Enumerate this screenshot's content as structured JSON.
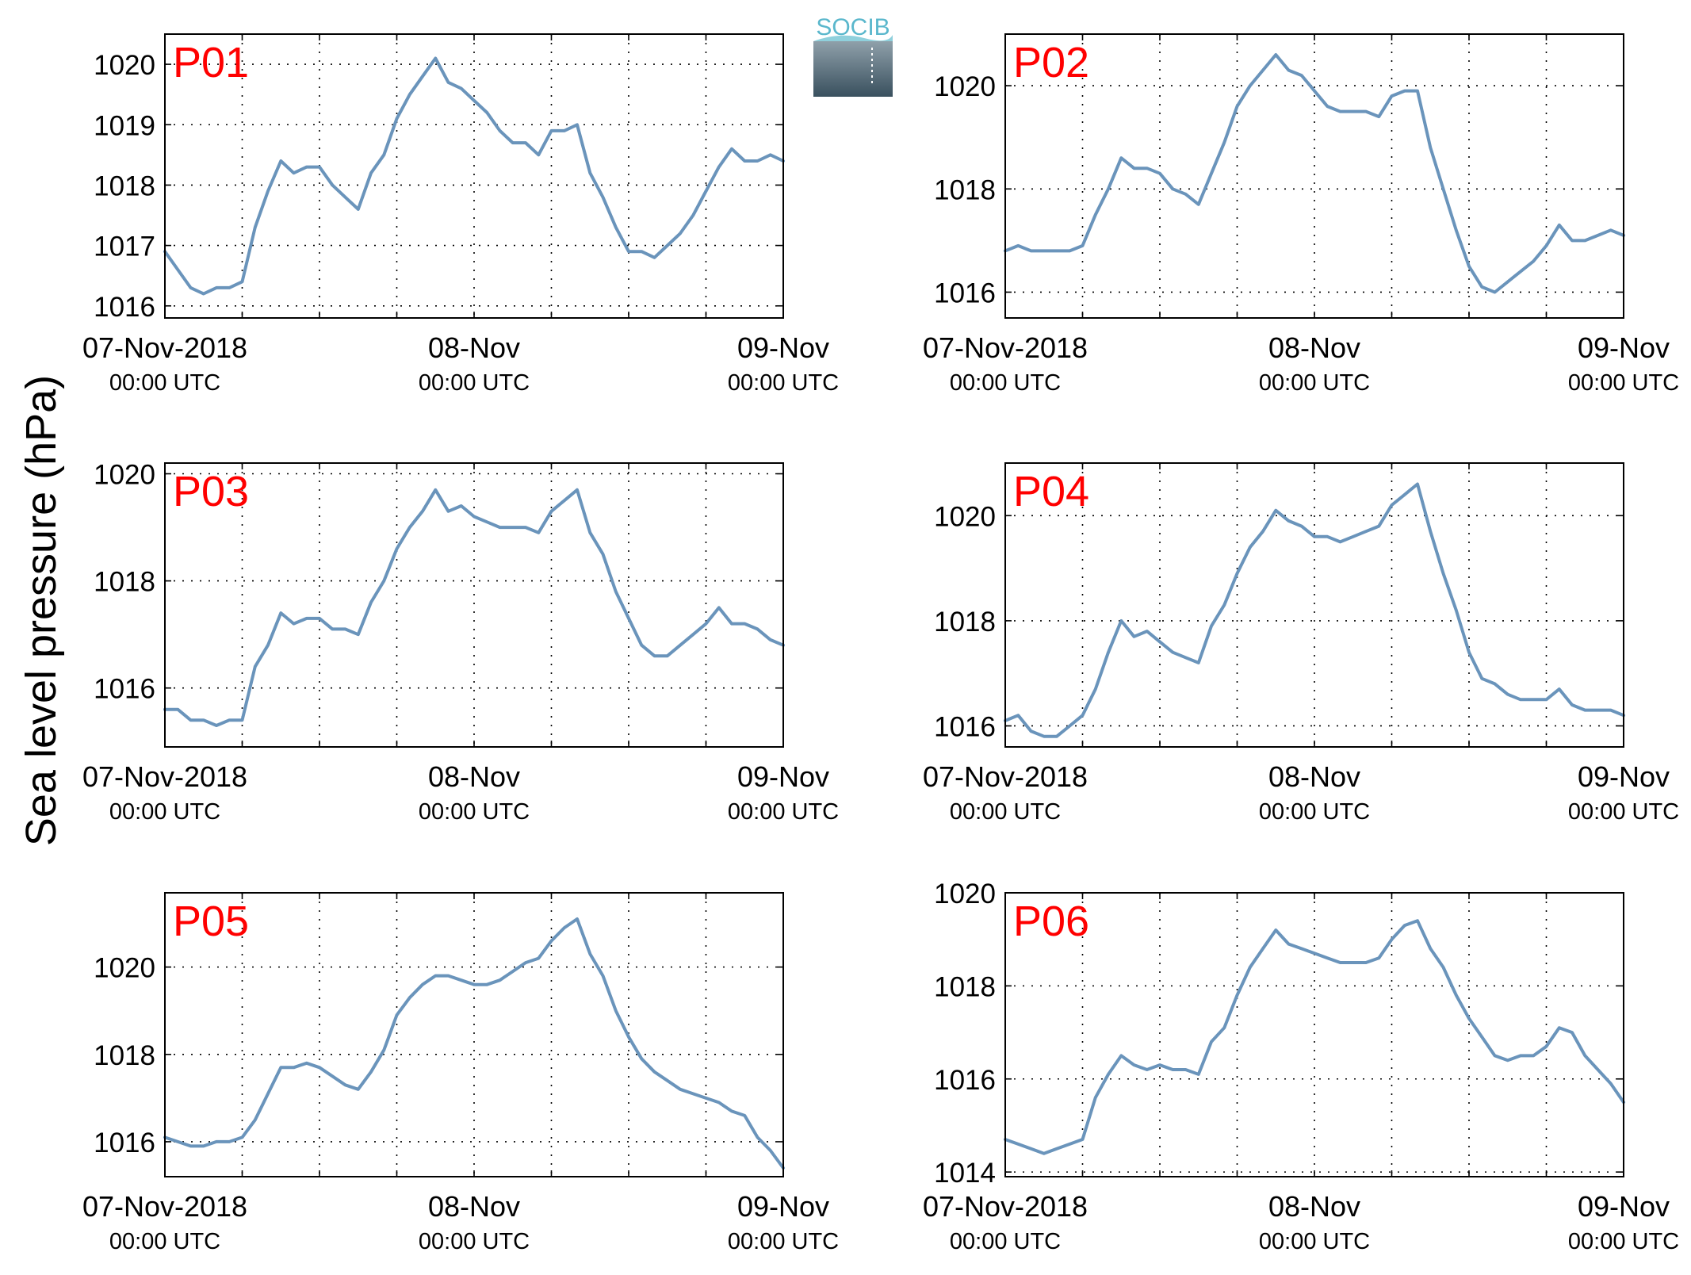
{
  "figure": {
    "ylabel": "Sea level pressure (hPa)",
    "logo_text": "SOCIB"
  },
  "colors": {
    "line": "#6a94bb",
    "panel_label": "#ff0000",
    "axis": "#000000",
    "grid": "#000000"
  },
  "chart_data": [
    {
      "type": "line",
      "panel": "P01",
      "x_ticks": [
        {
          "top": "07-Nov-2018",
          "bottom": "00:00 UTC"
        },
        {
          "top": "08-Nov",
          "bottom": "00:00 UTC"
        },
        {
          "top": "09-Nov",
          "bottom": "00:00 UTC"
        }
      ],
      "xlim_hours": [
        0,
        48
      ],
      "ylim": [
        1015.8,
        1020.5
      ],
      "yticks": [
        1016,
        1017,
        1018,
        1019,
        1020
      ],
      "grid": true,
      "x": [
        0,
        1,
        2,
        3,
        4,
        5,
        6,
        7,
        8,
        9,
        10,
        11,
        12,
        13,
        14,
        15,
        16,
        17,
        18,
        19,
        20,
        21,
        22,
        23,
        24,
        25,
        26,
        27,
        28,
        29,
        30,
        31,
        32,
        33,
        34,
        35,
        36,
        37,
        38,
        39,
        40,
        41,
        42,
        43,
        44,
        45,
        46,
        47,
        48
      ],
      "values": [
        1016.9,
        1016.6,
        1016.3,
        1016.2,
        1016.3,
        1016.3,
        1016.4,
        1017.3,
        1017.9,
        1018.4,
        1018.2,
        1018.3,
        1018.3,
        1018.0,
        1017.8,
        1017.6,
        1018.2,
        1018.5,
        1019.1,
        1019.5,
        1019.8,
        1020.1,
        1019.7,
        1019.6,
        1019.4,
        1019.2,
        1018.9,
        1018.7,
        1018.7,
        1018.5,
        1018.9,
        1018.9,
        1019.0,
        1018.2,
        1017.8,
        1017.3,
        1016.9,
        1016.9,
        1016.8,
        1017.0,
        1017.2,
        1017.5,
        1017.9,
        1018.3,
        1018.6,
        1018.4,
        1018.4,
        1018.5,
        1018.4
      ]
    },
    {
      "type": "line",
      "panel": "P02",
      "x_ticks": [
        {
          "top": "07-Nov-2018",
          "bottom": "00:00 UTC"
        },
        {
          "top": "08-Nov",
          "bottom": "00:00 UTC"
        },
        {
          "top": "09-Nov",
          "bottom": "00:00 UTC"
        }
      ],
      "xlim_hours": [
        0,
        48
      ],
      "ylim": [
        1015.5,
        1021.0
      ],
      "yticks": [
        1016,
        1018,
        1020
      ],
      "grid": true,
      "x": [
        0,
        1,
        2,
        3,
        4,
        5,
        6,
        7,
        8,
        9,
        10,
        11,
        12,
        13,
        14,
        15,
        16,
        17,
        18,
        19,
        20,
        21,
        22,
        23,
        24,
        25,
        26,
        27,
        28,
        29,
        30,
        31,
        32,
        33,
        34,
        35,
        36,
        37,
        38,
        39,
        40,
        41,
        42,
        43,
        44,
        45,
        46,
        47,
        48
      ],
      "values": [
        1016.8,
        1016.9,
        1016.8,
        1016.8,
        1016.8,
        1016.8,
        1016.9,
        1017.5,
        1018.0,
        1018.6,
        1018.4,
        1018.4,
        1018.3,
        1018.0,
        1017.9,
        1017.7,
        1018.3,
        1018.9,
        1019.6,
        1020.0,
        1020.3,
        1020.6,
        1020.3,
        1020.2,
        1019.9,
        1019.6,
        1019.5,
        1019.5,
        1019.5,
        1019.4,
        1019.8,
        1019.9,
        1019.9,
        1018.8,
        1018.0,
        1017.2,
        1016.5,
        1016.1,
        1016.0,
        1016.2,
        1016.4,
        1016.6,
        1016.9,
        1017.3,
        1017.0,
        1017.0,
        1017.1,
        1017.2,
        1017.1
      ]
    },
    {
      "type": "line",
      "panel": "P03",
      "x_ticks": [
        {
          "top": "07-Nov-2018",
          "bottom": "00:00 UTC"
        },
        {
          "top": "08-Nov",
          "bottom": "00:00 UTC"
        },
        {
          "top": "09-Nov",
          "bottom": "00:00 UTC"
        }
      ],
      "xlim_hours": [
        0,
        48
      ],
      "ylim": [
        1014.9,
        1020.2
      ],
      "yticks": [
        1016,
        1018,
        1020
      ],
      "grid": true,
      "x": [
        0,
        1,
        2,
        3,
        4,
        5,
        6,
        7,
        8,
        9,
        10,
        11,
        12,
        13,
        14,
        15,
        16,
        17,
        18,
        19,
        20,
        21,
        22,
        23,
        24,
        25,
        26,
        27,
        28,
        29,
        30,
        31,
        32,
        33,
        34,
        35,
        36,
        37,
        38,
        39,
        40,
        41,
        42,
        43,
        44,
        45,
        46,
        47,
        48
      ],
      "values": [
        1015.6,
        1015.6,
        1015.4,
        1015.4,
        1015.3,
        1015.4,
        1015.4,
        1016.4,
        1016.8,
        1017.4,
        1017.2,
        1017.3,
        1017.3,
        1017.1,
        1017.1,
        1017.0,
        1017.6,
        1018.0,
        1018.6,
        1019.0,
        1019.3,
        1019.7,
        1019.3,
        1019.4,
        1019.2,
        1019.1,
        1019.0,
        1019.0,
        1019.0,
        1018.9,
        1019.3,
        1019.5,
        1019.7,
        1018.9,
        1018.5,
        1017.8,
        1017.3,
        1016.8,
        1016.6,
        1016.6,
        1016.8,
        1017.0,
        1017.2,
        1017.5,
        1017.2,
        1017.2,
        1017.1,
        1016.9,
        1016.8
      ]
    },
    {
      "type": "line",
      "panel": "P04",
      "x_ticks": [
        {
          "top": "07-Nov-2018",
          "bottom": "00:00 UTC"
        },
        {
          "top": "08-Nov",
          "bottom": "00:00 UTC"
        },
        {
          "top": "09-Nov",
          "bottom": "00:00 UTC"
        }
      ],
      "xlim_hours": [
        0,
        48
      ],
      "ylim": [
        1015.6,
        1021.0
      ],
      "yticks": [
        1016,
        1018,
        1020
      ],
      "grid": true,
      "x": [
        0,
        1,
        2,
        3,
        4,
        5,
        6,
        7,
        8,
        9,
        10,
        11,
        12,
        13,
        14,
        15,
        16,
        17,
        18,
        19,
        20,
        21,
        22,
        23,
        24,
        25,
        26,
        27,
        28,
        29,
        30,
        31,
        32,
        33,
        34,
        35,
        36,
        37,
        38,
        39,
        40,
        41,
        42,
        43,
        44,
        45,
        46,
        47,
        48
      ],
      "values": [
        1016.1,
        1016.2,
        1015.9,
        1015.8,
        1015.8,
        1016.0,
        1016.2,
        1016.7,
        1017.4,
        1018.0,
        1017.7,
        1017.8,
        1017.6,
        1017.4,
        1017.3,
        1017.2,
        1017.9,
        1018.3,
        1018.9,
        1019.4,
        1019.7,
        1020.1,
        1019.9,
        1019.8,
        1019.6,
        1019.6,
        1019.5,
        1019.6,
        1019.7,
        1019.8,
        1020.2,
        1020.4,
        1020.6,
        1019.7,
        1018.9,
        1018.2,
        1017.4,
        1016.9,
        1016.8,
        1016.6,
        1016.5,
        1016.5,
        1016.5,
        1016.7,
        1016.4,
        1016.3,
        1016.3,
        1016.3,
        1016.2
      ]
    },
    {
      "type": "line",
      "panel": "P05",
      "x_ticks": [
        {
          "top": "07-Nov-2018",
          "bottom": "00:00 UTC"
        },
        {
          "top": "08-Nov",
          "bottom": "00:00 UTC"
        },
        {
          "top": "09-Nov",
          "bottom": "00:00 UTC"
        }
      ],
      "xlim_hours": [
        0,
        48
      ],
      "ylim": [
        1015.2,
        1021.7
      ],
      "yticks": [
        1016,
        1018,
        1020
      ],
      "grid": true,
      "x": [
        0,
        1,
        2,
        3,
        4,
        5,
        6,
        7,
        8,
        9,
        10,
        11,
        12,
        13,
        14,
        15,
        16,
        17,
        18,
        19,
        20,
        21,
        22,
        23,
        24,
        25,
        26,
        27,
        28,
        29,
        30,
        31,
        32,
        33,
        34,
        35,
        36,
        37,
        38,
        39,
        40,
        41,
        42,
        43,
        44,
        45,
        46,
        47,
        48
      ],
      "values": [
        1016.1,
        1016.0,
        1015.9,
        1015.9,
        1016.0,
        1016.0,
        1016.1,
        1016.5,
        1017.1,
        1017.7,
        1017.7,
        1017.8,
        1017.7,
        1017.5,
        1017.3,
        1017.2,
        1017.6,
        1018.1,
        1018.9,
        1019.3,
        1019.6,
        1019.8,
        1019.8,
        1019.7,
        1019.6,
        1019.6,
        1019.7,
        1019.9,
        1020.1,
        1020.2,
        1020.6,
        1020.9,
        1021.1,
        1020.3,
        1019.8,
        1019.0,
        1018.4,
        1017.9,
        1017.6,
        1017.4,
        1017.2,
        1017.1,
        1017.0,
        1016.9,
        1016.7,
        1016.6,
        1016.1,
        1015.8,
        1015.4
      ]
    },
    {
      "type": "line",
      "panel": "P06",
      "x_ticks": [
        {
          "top": "07-Nov-2018",
          "bottom": "00:00 UTC"
        },
        {
          "top": "08-Nov",
          "bottom": "00:00 UTC"
        },
        {
          "top": "09-Nov",
          "bottom": "00:00 UTC"
        }
      ],
      "xlim_hours": [
        0,
        48
      ],
      "ylim": [
        1013.9,
        1020.0
      ],
      "yticks": [
        1014,
        1016,
        1018,
        1020
      ],
      "grid": true,
      "x": [
        0,
        1,
        2,
        3,
        4,
        5,
        6,
        7,
        8,
        9,
        10,
        11,
        12,
        13,
        14,
        15,
        16,
        17,
        18,
        19,
        20,
        21,
        22,
        23,
        24,
        25,
        26,
        27,
        28,
        29,
        30,
        31,
        32,
        33,
        34,
        35,
        36,
        37,
        38,
        39,
        40,
        41,
        42,
        43,
        44,
        45,
        46,
        47,
        48
      ],
      "values": [
        1014.7,
        1014.6,
        1014.5,
        1014.4,
        1014.5,
        1014.6,
        1014.7,
        1015.6,
        1016.1,
        1016.5,
        1016.3,
        1016.2,
        1016.3,
        1016.2,
        1016.2,
        1016.1,
        1016.8,
        1017.1,
        1017.8,
        1018.4,
        1018.8,
        1019.2,
        1018.9,
        1018.8,
        1018.7,
        1018.6,
        1018.5,
        1018.5,
        1018.5,
        1018.6,
        1019.0,
        1019.3,
        1019.4,
        1018.8,
        1018.4,
        1017.8,
        1017.3,
        1016.9,
        1016.5,
        1016.4,
        1016.5,
        1016.5,
        1016.7,
        1017.1,
        1017.0,
        1016.5,
        1016.2,
        1015.9,
        1015.5
      ]
    }
  ]
}
